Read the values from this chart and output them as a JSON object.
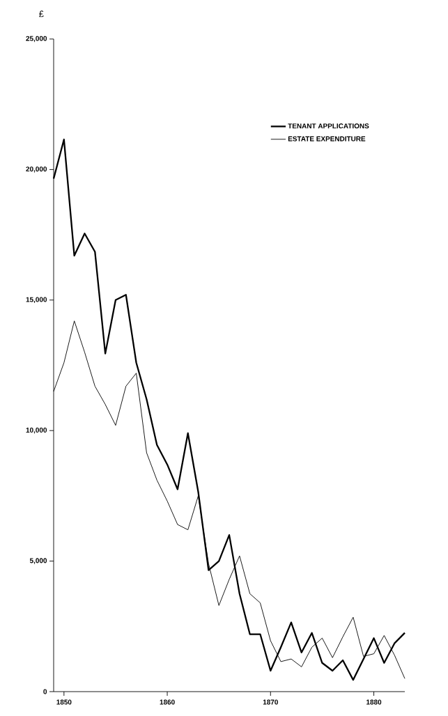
{
  "chart_data": {
    "type": "line",
    "ylabel": "£",
    "x": [
      1849,
      1850,
      1851,
      1852,
      1853,
      1854,
      1855,
      1856,
      1857,
      1858,
      1859,
      1860,
      1861,
      1862,
      1863,
      1864,
      1865,
      1866,
      1867,
      1868,
      1869,
      1870,
      1871,
      1872,
      1873,
      1874,
      1875,
      1876,
      1877,
      1878,
      1879,
      1880,
      1881,
      1882,
      1883
    ],
    "series": [
      {
        "name": "TENANT APPLICATIONS",
        "color": "#000000",
        "values": [
          19650,
          21150,
          16700,
          17550,
          16850,
          12950,
          15000,
          15200,
          12600,
          11200,
          9450,
          8700,
          7750,
          9900,
          7650,
          4650,
          5000,
          6000,
          3750,
          2200,
          2200,
          800,
          1700,
          2650,
          1500,
          2250,
          1100,
          800,
          1200,
          450,
          1250,
          2050,
          1100,
          1850,
          2250
        ]
      },
      {
        "name": "ESTATE EXPENDITURE",
        "color": "#000000",
        "values": [
          11500,
          12600,
          14200,
          13000,
          11700,
          11000,
          10200,
          11700,
          12200,
          9150,
          8100,
          7300,
          6400,
          6200,
          7500,
          4900,
          3300,
          4300,
          5200,
          3750,
          3400,
          1950,
          1150,
          1250,
          950,
          1700,
          2050,
          1300,
          2100,
          2850,
          1350,
          1450,
          2150,
          1400,
          500
        ]
      }
    ],
    "xlim": [
      1849,
      1883
    ],
    "ylim": [
      0,
      25000
    ],
    "xticks": [
      1850,
      1860,
      1870,
      1880
    ],
    "yticks": [
      0,
      {
        "value": 5000,
        "label": "5,000"
      },
      {
        "value": 10000,
        "label": "10,000"
      },
      {
        "value": 15000,
        "label": "15,000"
      },
      {
        "value": 20000,
        "label": "20,000"
      },
      {
        "value": 25000,
        "label": "25,000"
      }
    ],
    "legend": "top right",
    "marker": "none",
    "line_style": "solid"
  }
}
